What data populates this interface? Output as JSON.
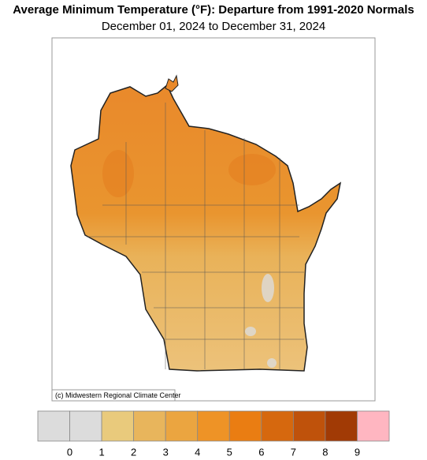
{
  "header": {
    "title": "Average Minimum Temperature (°F): Departure from 1991-2020 Normals",
    "subtitle": "December 01, 2024 to December 31, 2024"
  },
  "map": {
    "credit": "(c) Midwestern Regional Climate Center"
  },
  "legend": {
    "colors": [
      "#dcdcdc",
      "#dcdcdc",
      "#e9ca7c",
      "#e8b55c",
      "#eba540",
      "#ee9326",
      "#ea7d12",
      "#d6680e",
      "#bf520b",
      "#a13a05",
      "#ffb6c1"
    ],
    "labels": [
      0,
      1,
      2,
      3,
      4,
      5,
      6,
      7,
      8,
      9
    ]
  }
}
